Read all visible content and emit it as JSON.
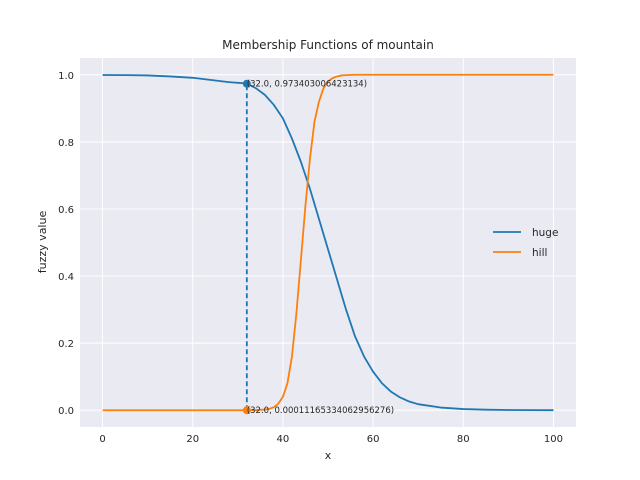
{
  "chart_data": {
    "type": "line",
    "title": "Membership Functions of mountain",
    "xlabel": "x",
    "ylabel": "fuzzy value",
    "xlim": [
      -5,
      105
    ],
    "ylim": [
      -0.05,
      1.05
    ],
    "xticks": [
      0,
      20,
      40,
      60,
      80,
      100
    ],
    "yticks": [
      0.0,
      0.2,
      0.4,
      0.6,
      0.8,
      1.0
    ],
    "xtick_labels": [
      "0",
      "20",
      "40",
      "60",
      "80",
      "100"
    ],
    "ytick_labels": [
      "0.0",
      "0.2",
      "0.4",
      "0.6",
      "0.8",
      "1.0"
    ],
    "grid": true,
    "legend_position": "center-right",
    "series": [
      {
        "name": "huge",
        "color": "#1f77b4",
        "x": [
          0,
          5,
          10,
          15,
          20,
          25,
          28,
          30,
          32,
          34,
          36,
          38,
          40,
          42,
          44,
          46,
          48,
          50,
          52,
          54,
          56,
          58,
          60,
          62,
          64,
          66,
          68,
          70,
          75,
          80,
          85,
          90,
          95,
          100
        ],
        "y": [
          0.9993,
          0.999,
          0.998,
          0.995,
          0.991,
          0.983,
          0.978,
          0.976,
          0.974,
          0.96,
          0.94,
          0.91,
          0.87,
          0.81,
          0.74,
          0.66,
          0.57,
          0.48,
          0.39,
          0.3,
          0.22,
          0.16,
          0.115,
          0.08,
          0.055,
          0.038,
          0.026,
          0.018,
          0.008,
          0.0035,
          0.0016,
          0.0007,
          0.0003,
          0.0001
        ]
      },
      {
        "name": "hill",
        "color": "#ff7f0e",
        "x": [
          0,
          10,
          20,
          30,
          32,
          34,
          36,
          37,
          38,
          39,
          40,
          41,
          42,
          43,
          44,
          45,
          46,
          47,
          48,
          49,
          50,
          51,
          52,
          53,
          54,
          56,
          60,
          70,
          80,
          90,
          100
        ],
        "y": [
          0.0,
          0.0,
          0.0,
          0.0,
          0.0001,
          0.0005,
          0.002,
          0.004,
          0.009,
          0.02,
          0.04,
          0.08,
          0.16,
          0.29,
          0.45,
          0.61,
          0.75,
          0.86,
          0.92,
          0.96,
          0.98,
          0.99,
          0.995,
          0.998,
          0.999,
          1.0,
          1.0,
          1.0,
          1.0,
          1.0,
          1.0
        ]
      }
    ],
    "vline": {
      "x": 32.0,
      "y0": 0.00011165334062956276,
      "y1": 0.973403006423134,
      "color": "#1f77b4",
      "style": "dashed"
    },
    "points": [
      {
        "x": 32.0,
        "y": 0.973403006423134,
        "color": "#1f77b4",
        "label": "(32.0, 0.973403006423134)"
      },
      {
        "x": 32.0,
        "y": 0.00011165334062956276,
        "color": "#ff7f0e",
        "label": "(32.0, 0.00011165334062956276)"
      }
    ]
  }
}
